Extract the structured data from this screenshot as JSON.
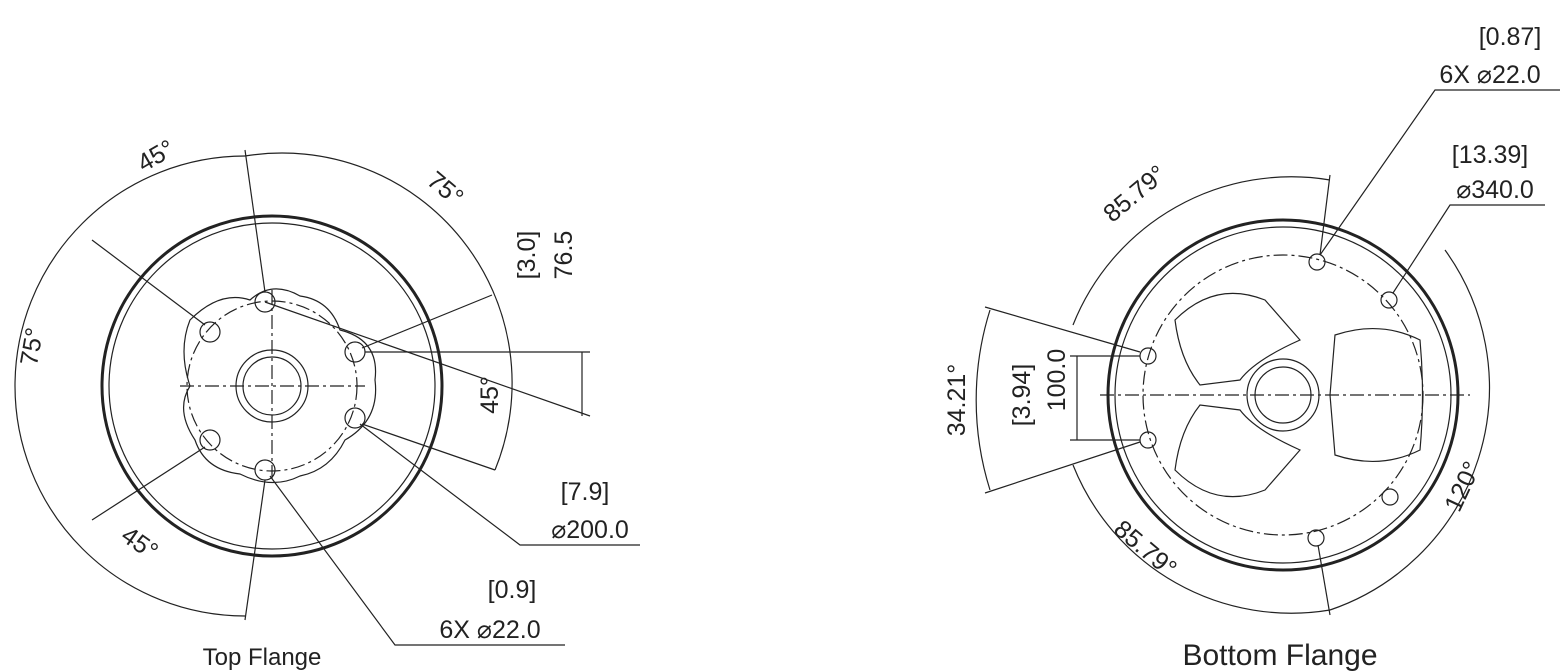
{
  "top_flange": {
    "label": "Top Flange",
    "dimensions": {
      "angle_top": "45°",
      "angle_top_right": "75°",
      "angle_left": "75°",
      "angle_bottom_left": "45°",
      "angle_right": "45°",
      "offset_inch": "[3.0]",
      "offset_mm": "76.5",
      "bolt_circle_inch": "[7.9]",
      "bolt_circle_mm": "⌀200.0",
      "hole_inch": "[0.9]",
      "hole_mm": "6X ⌀22.0"
    }
  },
  "bottom_flange": {
    "label": "Bottom Flange",
    "dimensions": {
      "hole_inch": "[0.87]",
      "hole_mm": "6X ⌀22.0",
      "bolt_circle_inch": "[13.39]",
      "bolt_circle_mm": "⌀340.0",
      "angle_top": "85.79°",
      "angle_left": "34.21°",
      "offset_inch": "[3.94]",
      "offset_mm": "100.0",
      "angle_right": "120°",
      "angle_bottom": "85.79°"
    }
  }
}
